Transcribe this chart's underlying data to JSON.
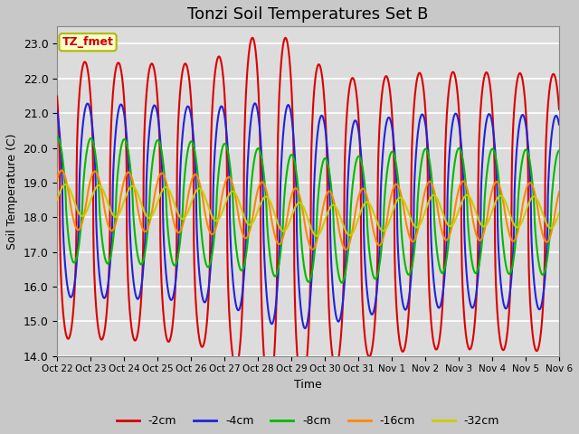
{
  "title": "Tonzi Soil Temperatures Set B",
  "xlabel": "Time",
  "ylabel": "Soil Temperature (C)",
  "ylim": [
    14.0,
    23.5
  ],
  "yticks": [
    14.0,
    15.0,
    16.0,
    17.0,
    18.0,
    19.0,
    20.0,
    21.0,
    22.0,
    23.0
  ],
  "annotation_label": "TZ_fmet",
  "annotation_color": "#cc0000",
  "annotation_bg": "#ffffcc",
  "annotation_border": "#aabb00",
  "series_colors": [
    "#dd0000",
    "#2222dd",
    "#00bb00",
    "#ff8800",
    "#cccc00"
  ],
  "series_labels": [
    "-2cm",
    "-4cm",
    "-8cm",
    "-16cm",
    "-32cm"
  ],
  "x_tick_labels": [
    "Oct 22",
    "Oct 23",
    "Oct 24",
    "Oct 25",
    "Oct 26",
    "Oct 27",
    "Oct 28",
    "Oct 29",
    "Oct 30",
    "Oct 31",
    "Nov 1",
    "Nov 2",
    "Nov 3",
    "Nov 4",
    "Nov 5",
    "Nov 6"
  ],
  "bg_color": "#dcdcdc",
  "plot_bg_color": "#dcdcdc",
  "grid_color": "#ffffff",
  "title_fontsize": 13,
  "figsize": [
    6.4,
    4.8
  ],
  "dpi": 100
}
